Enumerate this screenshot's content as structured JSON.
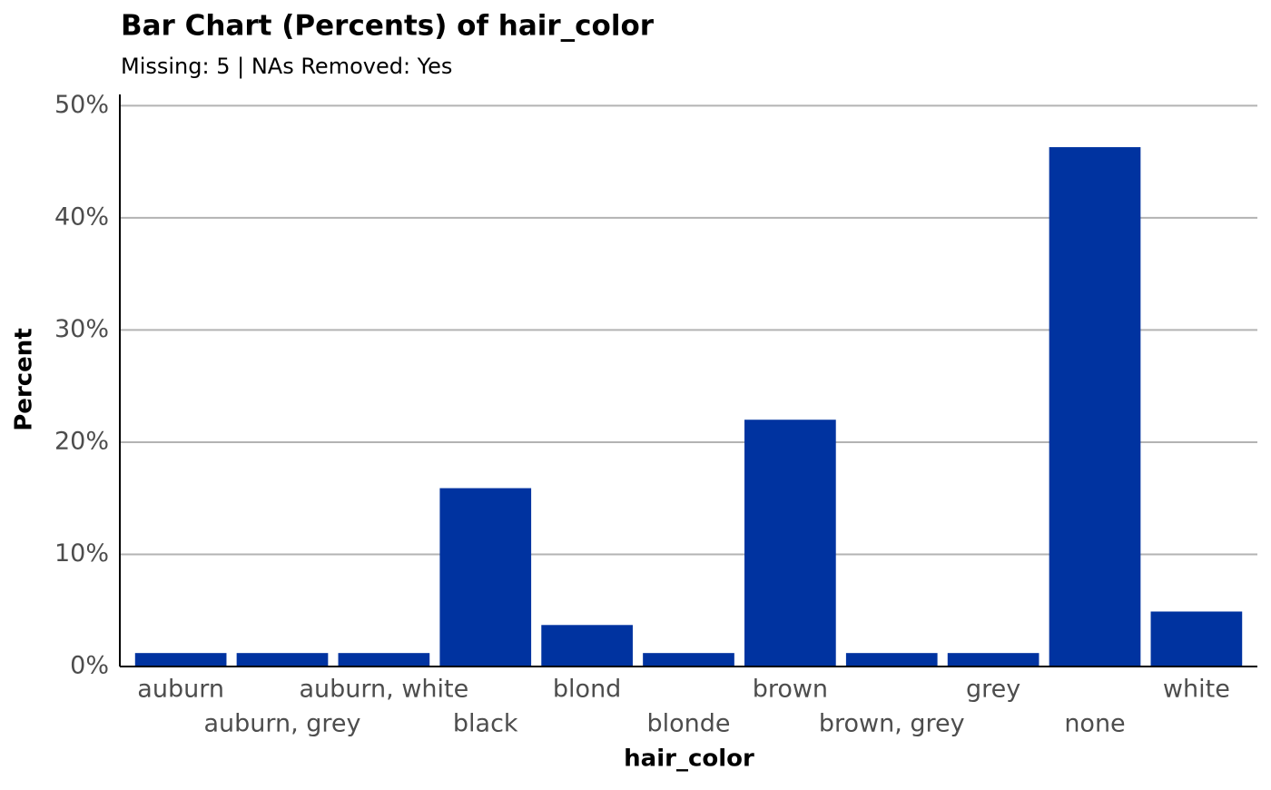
{
  "chart_data": {
    "type": "bar",
    "title": "Bar Chart (Percents) of hair_color",
    "subtitle": "Missing: 5 | NAs Removed: Yes",
    "x_label": "hair_color",
    "y_label": "Percent",
    "categories": [
      "auburn",
      "auburn, grey",
      "auburn, white",
      "black",
      "blond",
      "blonde",
      "brown",
      "brown, grey",
      "grey",
      "none",
      "white"
    ],
    "values": [
      1.2,
      1.2,
      1.2,
      15.9,
      3.7,
      1.2,
      22,
      1.2,
      1.2,
      46.3,
      4.9
    ],
    "color": "#0033a0",
    "ylim": [
      0,
      51
    ],
    "yticks": [
      {
        "value": 0,
        "label": "0%"
      },
      {
        "value": 10,
        "label": "10%"
      },
      {
        "value": 20,
        "label": "20%"
      },
      {
        "value": 30,
        "label": "30%"
      },
      {
        "value": 40,
        "label": "40%"
      },
      {
        "value": 50,
        "label": "50%"
      }
    ],
    "grid": true
  }
}
